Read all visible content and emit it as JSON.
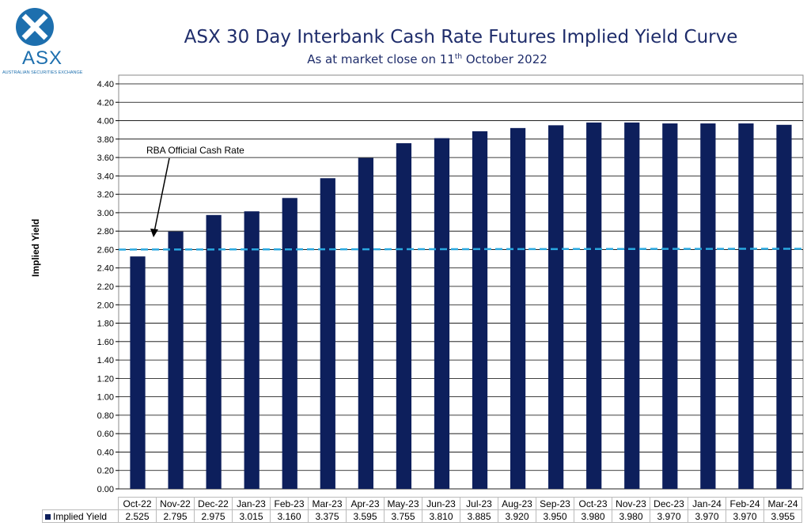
{
  "logo": {
    "text": "ASX",
    "subtitle": "AUSTRALIAN SECURITIES EXCHANGE"
  },
  "chart_data": {
    "type": "bar",
    "title": "ASX 30 Day Interbank Cash Rate Futures Implied Yield Curve",
    "subtitle_pre": "As at market close on 11",
    "subtitle_sup": "th",
    "subtitle_post": " October 2022",
    "ylabel": "Implied Yield",
    "ylim": [
      0,
      4.4
    ],
    "yticks": [
      "0.00",
      "0.20",
      "0.40",
      "0.60",
      "0.80",
      "1.00",
      "1.20",
      "1.40",
      "1.60",
      "1.80",
      "2.00",
      "2.20",
      "2.40",
      "2.60",
      "2.80",
      "3.00",
      "3.20",
      "3.40",
      "3.60",
      "3.80",
      "4.00",
      "4.20",
      "4.40"
    ],
    "grid": true,
    "categories": [
      "Oct-22",
      "Nov-22",
      "Dec-22",
      "Jan-23",
      "Feb-23",
      "Mar-23",
      "Apr-23",
      "May-23",
      "Jun-23",
      "Jul-23",
      "Aug-23",
      "Sep-23",
      "Oct-23",
      "Nov-23",
      "Dec-23",
      "Jan-24",
      "Feb-24",
      "Mar-24"
    ],
    "series": [
      {
        "name": "Implied Yield",
        "values": [
          2.525,
          2.795,
          2.975,
          3.015,
          3.16,
          3.375,
          3.595,
          3.755,
          3.81,
          3.885,
          3.92,
          3.95,
          3.98,
          3.98,
          3.97,
          3.97,
          3.97,
          3.955
        ],
        "labels": [
          "2.525",
          "2.795",
          "2.975",
          "3.015",
          "3.160",
          "3.375",
          "3.595",
          "3.755",
          "3.810",
          "3.885",
          "3.920",
          "3.950",
          "3.980",
          "3.980",
          "3.970",
          "3.970",
          "3.970",
          "3.955"
        ],
        "color": "#0d1f5c"
      }
    ],
    "reference_line": {
      "label": "RBA Official Cash Rate",
      "value": 2.6,
      "color": "#29a8e0",
      "style": "dashed"
    },
    "legend": "data-table"
  }
}
